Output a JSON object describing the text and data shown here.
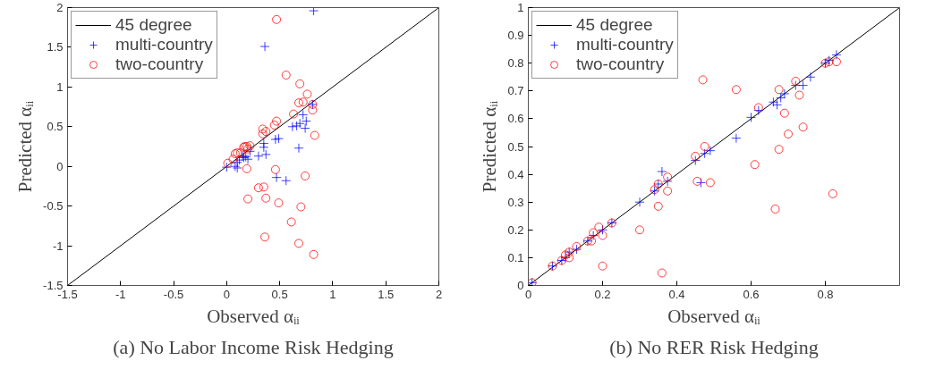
{
  "chart_data": [
    {
      "type": "scatter",
      "title": "(a) No Labor Income Risk Hedging",
      "xlabel": "Observed αᵢᵢ",
      "ylabel": "Predicted αᵢᵢ",
      "xlim": [
        -1.5,
        2
      ],
      "ylim": [
        -1.5,
        2
      ],
      "xticks": [
        -1.5,
        -1,
        -0.5,
        0,
        0.5,
        1,
        1.5,
        2
      ],
      "yticks": [
        -1.5,
        -1,
        -0.5,
        0,
        0.5,
        1,
        1.5,
        2
      ],
      "grid": false,
      "legend": "top left",
      "series": [
        {
          "name": "45 degree",
          "type": "line",
          "color": "#000000",
          "marker": "none",
          "x": [
            -1.5,
            2
          ],
          "values": [
            -1.5,
            2
          ]
        },
        {
          "name": "multi-country",
          "color": "#0000ff",
          "marker": "cross",
          "x": [
            0.82,
            0.36,
            0.81,
            0.72,
            0.75,
            0.69,
            0.62,
            0.66,
            0.74,
            0.46,
            0.49,
            0.35,
            0.35,
            0.68,
            0.3,
            0.37,
            0.22,
            0.2,
            0.16,
            0.1,
            0.08,
            0.0,
            0.1,
            0.47,
            0.56,
            0.18,
            0.12,
            0.15
          ],
          "values": [
            1.96,
            1.51,
            0.78,
            0.65,
            0.57,
            0.54,
            0.5,
            0.51,
            0.48,
            0.34,
            0.35,
            0.29,
            0.24,
            0.23,
            0.13,
            0.15,
            0.19,
            0.09,
            0.11,
            0.05,
            0.0,
            -0.01,
            -0.02,
            -0.14,
            -0.18,
            0.12,
            0.08,
            0.13
          ]
        },
        {
          "name": "two-country",
          "color": "#ff0000",
          "marker": "circle",
          "x": [
            0.47,
            0.56,
            0.69,
            0.76,
            0.68,
            0.72,
            0.81,
            0.81,
            0.63,
            0.83,
            0.47,
            0.45,
            0.34,
            0.37,
            0.34,
            0.19,
            0.16,
            0.22,
            0.17,
            0.2,
            0.1,
            0.08,
            0.13,
            0.06,
            0.01,
            0.19,
            0.46,
            0.74,
            0.3,
            0.35,
            0.2,
            0.37,
            0.49,
            0.7,
            0.61,
            0.36,
            0.68,
            0.82
          ],
          "values": [
            1.85,
            1.15,
            1.04,
            0.91,
            0.8,
            0.81,
            0.78,
            0.71,
            0.66,
            0.39,
            0.57,
            0.52,
            0.47,
            0.44,
            0.41,
            0.25,
            0.24,
            0.26,
            0.25,
            0.22,
            0.17,
            0.16,
            0.17,
            0.09,
            0.04,
            -0.03,
            -0.04,
            -0.12,
            -0.27,
            -0.26,
            -0.41,
            -0.4,
            -0.46,
            -0.51,
            -0.7,
            -0.89,
            -0.97,
            -1.11
          ]
        }
      ]
    },
    {
      "type": "scatter",
      "title": "(b) No RER Risk Hedging",
      "xlabel": "Observed αᵢᵢ",
      "ylabel": "Predicted αᵢᵢ",
      "xlim": [
        0,
        1
      ],
      "ylim": [
        0,
        1
      ],
      "xticks": [
        0,
        0.2,
        0.4,
        0.6,
        0.8
      ],
      "yticks": [
        0,
        0.1,
        0.2,
        0.3,
        0.4,
        0.5,
        0.6,
        0.7,
        0.8,
        0.9,
        1
      ],
      "grid": false,
      "legend": "top left",
      "series": [
        {
          "name": "45 degree",
          "type": "line",
          "color": "#000000",
          "marker": "none",
          "x": [
            0,
            1
          ],
          "values": [
            0,
            1
          ]
        },
        {
          "name": "multi-country",
          "color": "#0000ff",
          "marker": "cross",
          "x": [
            0.01,
            0.065,
            0.09,
            0.1,
            0.11,
            0.13,
            0.16,
            0.175,
            0.2,
            0.225,
            0.3,
            0.34,
            0.35,
            0.36,
            0.375,
            0.45,
            0.465,
            0.475,
            0.49,
            0.56,
            0.6,
            0.62,
            0.66,
            0.67,
            0.68,
            0.69,
            0.72,
            0.74,
            0.76,
            0.8,
            0.81,
            0.83
          ],
          "values": [
            0.01,
            0.07,
            0.09,
            0.1,
            0.12,
            0.13,
            0.16,
            0.18,
            0.2,
            0.225,
            0.3,
            0.34,
            0.365,
            0.41,
            0.375,
            0.45,
            0.37,
            0.475,
            0.485,
            0.53,
            0.605,
            0.63,
            0.66,
            0.65,
            0.675,
            0.69,
            0.72,
            0.72,
            0.75,
            0.8,
            0.81,
            0.83
          ]
        },
        {
          "name": "two-country",
          "color": "#ff0000",
          "marker": "circle",
          "x": [
            0.01,
            0.065,
            0.09,
            0.1,
            0.11,
            0.11,
            0.13,
            0.16,
            0.17,
            0.175,
            0.19,
            0.2,
            0.2,
            0.225,
            0.3,
            0.34,
            0.35,
            0.35,
            0.375,
            0.375,
            0.45,
            0.455,
            0.475,
            0.49,
            0.36,
            0.47,
            0.56,
            0.61,
            0.62,
            0.665,
            0.675,
            0.675,
            0.69,
            0.7,
            0.72,
            0.73,
            0.74,
            0.8,
            0.81,
            0.82,
            0.83
          ],
          "values": [
            0.01,
            0.07,
            0.09,
            0.11,
            0.12,
            0.1,
            0.14,
            0.16,
            0.16,
            0.19,
            0.21,
            0.18,
            0.07,
            0.225,
            0.2,
            0.345,
            0.365,
            0.285,
            0.39,
            0.34,
            0.465,
            0.375,
            0.5,
            0.37,
            0.045,
            0.74,
            0.705,
            0.435,
            0.64,
            0.275,
            0.705,
            0.49,
            0.62,
            0.545,
            0.735,
            0.685,
            0.57,
            0.8,
            0.805,
            0.33,
            0.805
          ]
        }
      ]
    }
  ]
}
